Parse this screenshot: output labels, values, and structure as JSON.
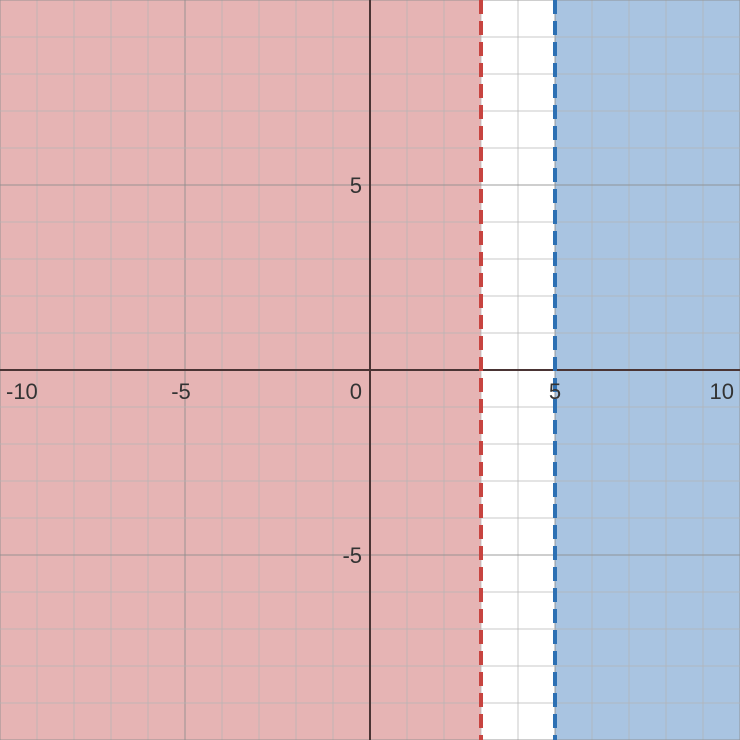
{
  "chart_data": {
    "type": "line",
    "title": "",
    "xlabel": "",
    "ylabel": "",
    "xlim": [
      -10,
      10
    ],
    "ylim": [
      -10,
      10
    ],
    "grid": true,
    "minor_grid_step": 1,
    "major_grid_step": 5,
    "x_tick_labels": [
      "-10",
      "-5",
      "0",
      "5",
      "10"
    ],
    "y_tick_labels": [
      "5",
      "-5"
    ],
    "series": [
      {
        "kind": "vertical-boundary",
        "x": 3,
        "style": "dashed",
        "color": "#c74440",
        "shaded_side": "left",
        "fill_color": "#e6b4b4"
      },
      {
        "kind": "vertical-boundary",
        "x": 5,
        "style": "dashed",
        "color": "#2d70b3",
        "shaded_side": "right",
        "fill_color": "#a9c4e1"
      }
    ],
    "colors": {
      "background": "#ffffff",
      "minor_grid": "#b3b3b3",
      "major_grid": "#8c8c8c",
      "axis": "#4a3434"
    }
  }
}
